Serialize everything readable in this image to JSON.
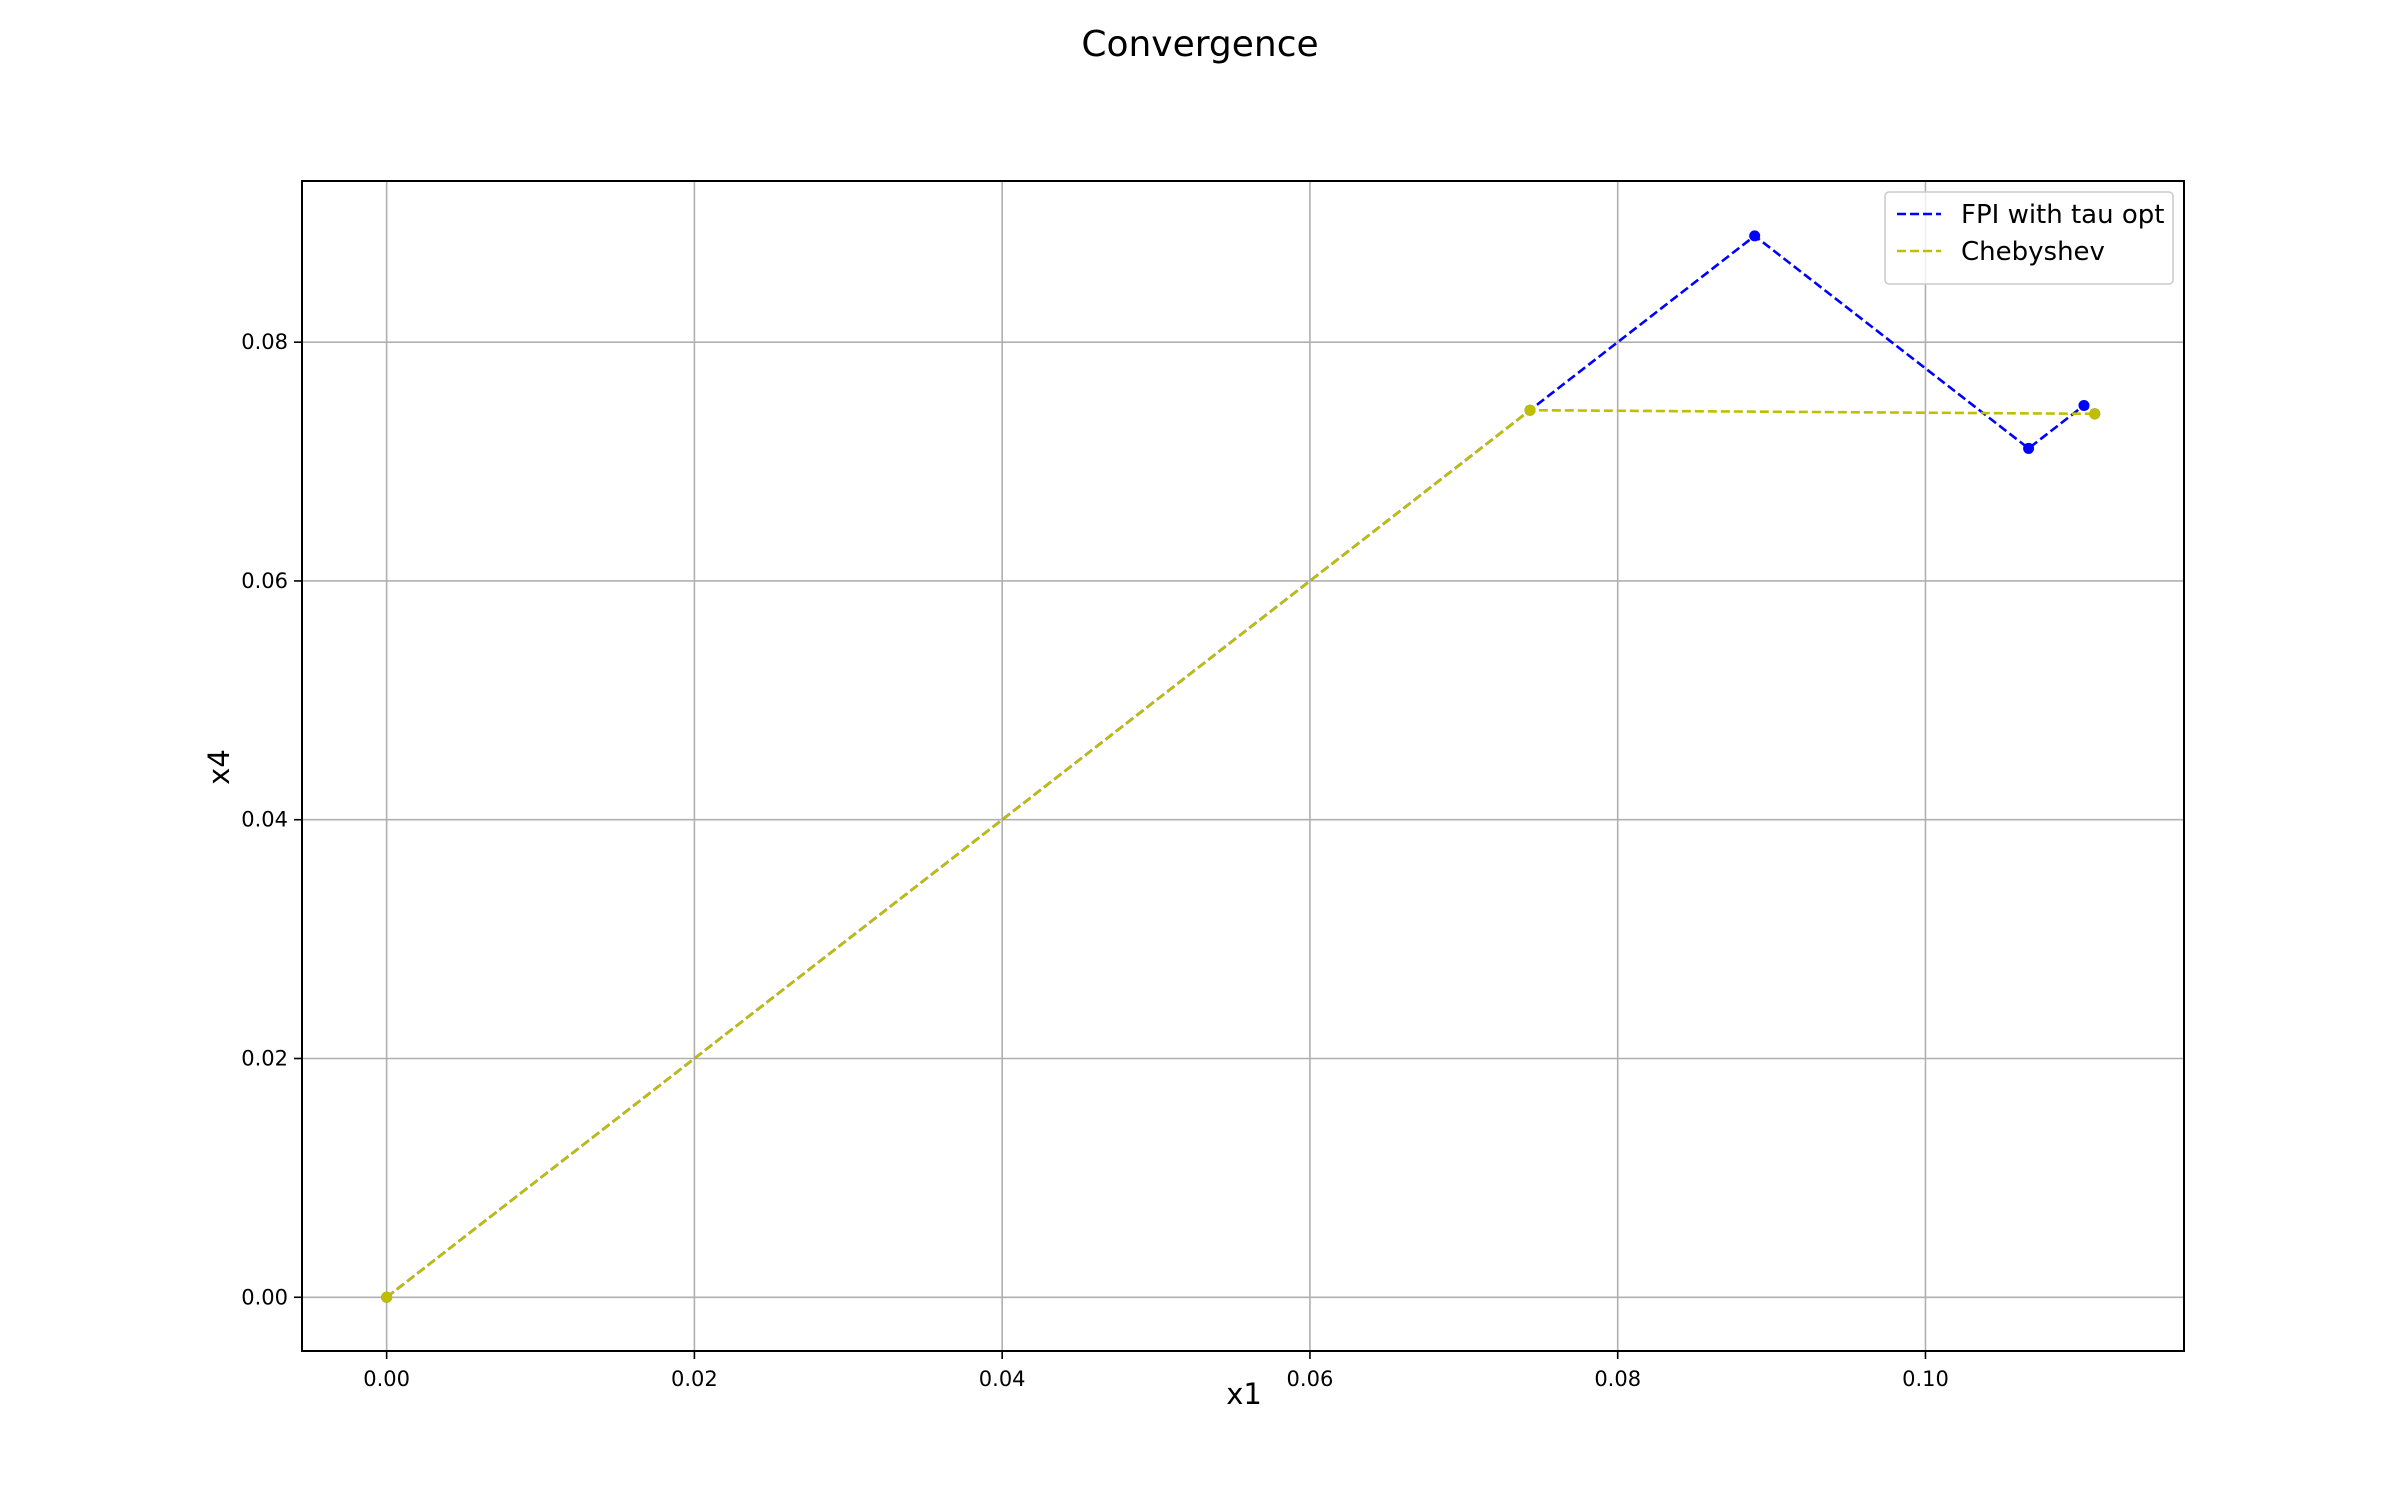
{
  "chart_data": {
    "type": "line",
    "title": "Convergence",
    "xlabel": "x1",
    "ylabel": "x4",
    "xlim": [
      -0.0055,
      0.1168
    ],
    "ylim": [
      -0.0045,
      0.0935
    ],
    "xticks": [
      0.0,
      0.02,
      0.04,
      0.06,
      0.08,
      0.1
    ],
    "xtick_labels": [
      "0.00",
      "0.02",
      "0.04",
      "0.06",
      "0.08",
      "0.10"
    ],
    "yticks": [
      0.0,
      0.02,
      0.04,
      0.06,
      0.08
    ],
    "ytick_labels": [
      "0.00",
      "0.02",
      "0.04",
      "0.06",
      "0.08"
    ],
    "grid": true,
    "legend_position": "top-right",
    "series": [
      {
        "name": "FPI with tau opt",
        "color": "#0000ff",
        "linestyle": "dashed",
        "marker": "circle",
        "x": [
          0.0,
          0.0743,
          0.0889,
          0.1067,
          0.1103,
          0.111
        ],
        "y": [
          0.0,
          0.0743,
          0.0889,
          0.0711,
          0.0747,
          0.074
        ]
      },
      {
        "name": "Chebyshev",
        "color": "#bfbf00",
        "linestyle": "dashed",
        "marker": "circle",
        "x": [
          0.0,
          0.0743,
          0.111
        ],
        "y": [
          0.0,
          0.0743,
          0.074
        ]
      }
    ]
  }
}
